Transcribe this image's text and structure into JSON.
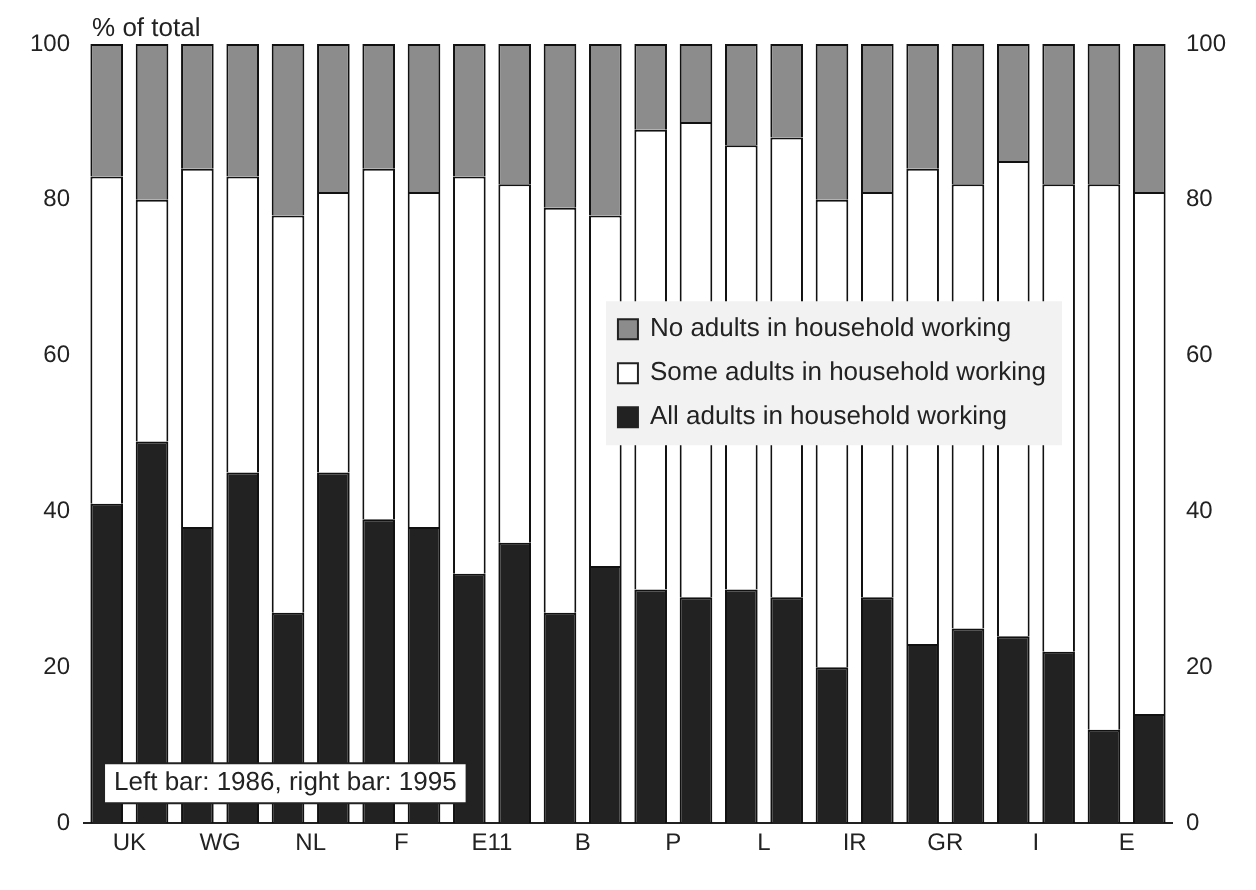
{
  "chart_data": {
    "type": "bar",
    "stacked": true,
    "ylabel": "% of total",
    "categories": [
      "UK",
      null,
      "WG",
      null,
      "NL",
      null,
      "F",
      null,
      "E11",
      null,
      "B",
      null,
      "P",
      null,
      "L",
      null,
      "IR",
      null,
      "GR",
      null,
      "I",
      null,
      "E",
      null
    ],
    "series": [
      {
        "name": "All adults in household working",
        "color": "#222222",
        "values": [
          41,
          49,
          38,
          45,
          27,
          45,
          39,
          38,
          32,
          36,
          27,
          33,
          30,
          29,
          30,
          29,
          20,
          29,
          23,
          25,
          24,
          22,
          12,
          14
        ]
      },
      {
        "name": "Some adults in household working",
        "color": "#ffffff",
        "values": [
          42,
          31,
          46,
          38,
          51,
          36,
          45,
          43,
          51,
          46,
          52,
          45,
          59,
          61,
          57,
          59,
          60,
          52,
          61,
          57,
          61,
          60,
          70,
          67
        ]
      },
      {
        "name": "No adults in household working",
        "color": "#8c8c8c",
        "values": [
          17,
          20,
          16,
          17,
          22,
          19,
          16,
          19,
          17,
          18,
          21,
          22,
          11,
          10,
          13,
          12,
          20,
          19,
          16,
          18,
          15,
          18,
          18,
          19
        ]
      }
    ],
    "ylim": [
      0,
      100
    ],
    "yticks": [
      0,
      20,
      40,
      60,
      80,
      100
    ],
    "y2lim": [
      0,
      100
    ],
    "y2ticks": [
      0,
      20,
      40,
      60,
      80,
      100
    ],
    "grid": false,
    "legend": "right",
    "annotations": [
      "Left bar: 1986, right bar: 1995"
    ]
  }
}
